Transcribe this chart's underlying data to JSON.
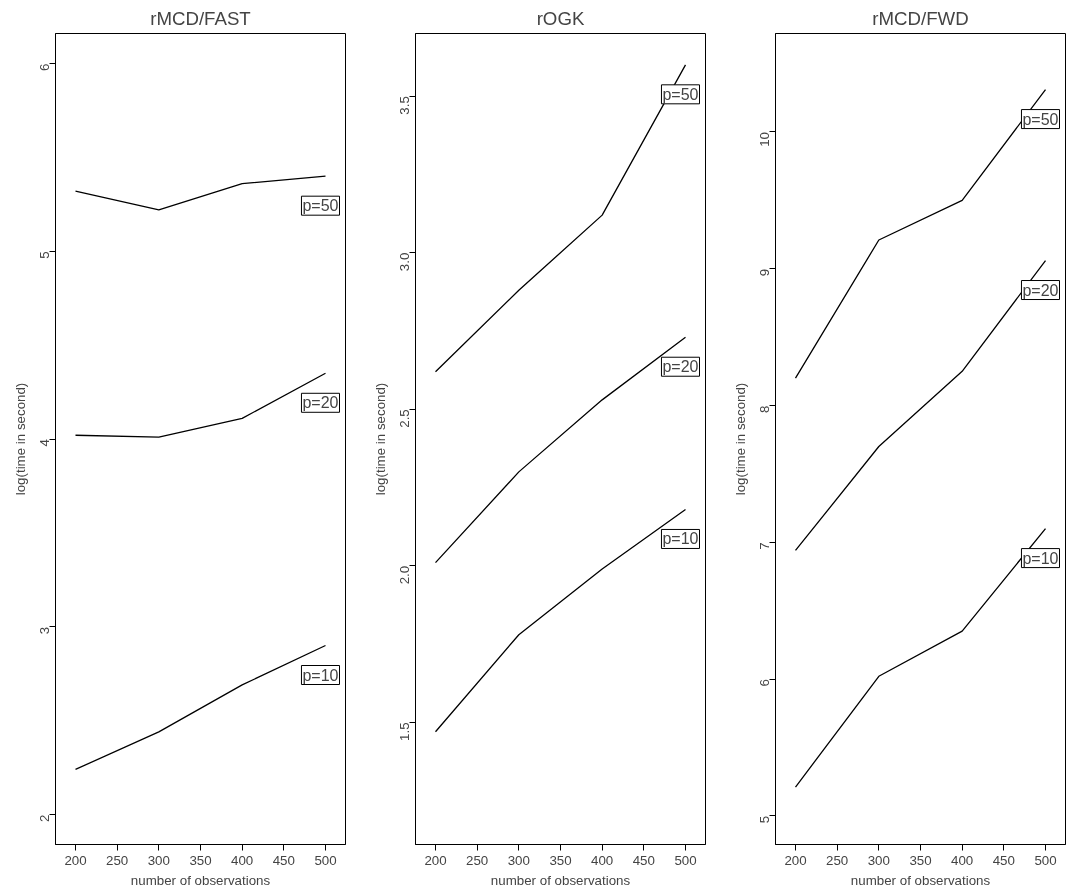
{
  "chart_data": [
    {
      "type": "line",
      "title": "rMCD/FAST",
      "xlabel": "number of observations",
      "ylabel": "log(time in second)",
      "x": [
        200,
        300,
        400,
        500
      ],
      "xlim": [
        176,
        524
      ],
      "xticks": [
        200,
        250,
        300,
        350,
        400,
        450,
        500
      ],
      "ylim": [
        1.84,
        6.16
      ],
      "yticks": [
        2,
        3,
        4,
        5,
        6
      ],
      "series": [
        {
          "name": "p=50",
          "color": "#000000",
          "values": [
            5.32,
            5.22,
            5.36,
            5.4
          ]
        },
        {
          "name": "p=20",
          "color": "#000000",
          "values": [
            4.02,
            4.01,
            4.11,
            4.35
          ]
        },
        {
          "name": "p=10",
          "color": "#000000",
          "values": [
            2.24,
            2.44,
            2.69,
            2.9
          ]
        }
      ]
    },
    {
      "type": "line",
      "title": "rOGK",
      "xlabel": "number of observations",
      "ylabel": "log(time in second)",
      "x": [
        200,
        300,
        400,
        500
      ],
      "xlim": [
        176,
        524
      ],
      "xticks": [
        200,
        250,
        300,
        350,
        400,
        450,
        500
      ],
      "ylim": [
        1.11,
        3.7
      ],
      "yticks": [
        {
          "value": 1.5,
          "label": "1.5"
        },
        {
          "value": 2.0,
          "label": "2.0"
        },
        {
          "value": 2.5,
          "label": "2.5"
        },
        {
          "value": 3.0,
          "label": "3.0"
        },
        {
          "value": 3.5,
          "label": "3.5"
        }
      ],
      "series": [
        {
          "name": "p=50",
          "color": "#000000",
          "values": [
            2.62,
            2.88,
            3.12,
            3.6
          ]
        },
        {
          "name": "p=20",
          "color": "#000000",
          "values": [
            2.01,
            2.3,
            2.53,
            2.73
          ]
        },
        {
          "name": "p=10",
          "color": "#000000",
          "values": [
            1.47,
            1.78,
            1.99,
            2.18
          ]
        }
      ]
    },
    {
      "type": "line",
      "title": "rMCD/FWD",
      "xlabel": "number of observations",
      "ylabel": "log(time in second)",
      "x": [
        200,
        300,
        400,
        500
      ],
      "xlim": [
        176,
        524
      ],
      "xticks": [
        200,
        250,
        300,
        350,
        400,
        450,
        500
      ],
      "ylim": [
        4.79,
        10.72
      ],
      "yticks": [
        5,
        6,
        7,
        8,
        9,
        10
      ],
      "series": [
        {
          "name": "p=50",
          "color": "#000000",
          "values": [
            8.2,
            9.21,
            9.5,
            10.31
          ]
        },
        {
          "name": "p=20",
          "color": "#000000",
          "values": [
            6.94,
            7.7,
            8.25,
            9.06
          ]
        },
        {
          "name": "p=10",
          "color": "#000000",
          "values": [
            5.21,
            6.02,
            6.35,
            7.1
          ]
        }
      ]
    }
  ]
}
